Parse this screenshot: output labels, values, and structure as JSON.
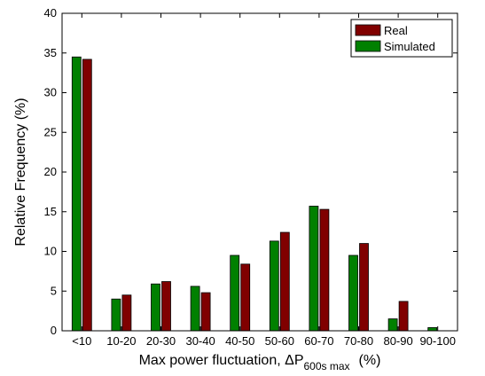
{
  "chart_data": {
    "type": "bar",
    "categories": [
      "<10",
      "10-20",
      "20-30",
      "30-40",
      "40-50",
      "50-60",
      "60-70",
      "70-80",
      "80-90",
      "90-100"
    ],
    "series": [
      {
        "name": "Simulated",
        "values": [
          34.5,
          4.0,
          5.9,
          5.6,
          9.5,
          11.3,
          15.7,
          9.5,
          1.5,
          0.4
        ],
        "color": "#008000"
      },
      {
        "name": "Real",
        "values": [
          34.2,
          4.5,
          6.2,
          4.8,
          8.4,
          12.4,
          15.3,
          11.0,
          3.7,
          0.0
        ],
        "color": "#800000"
      }
    ],
    "xlabel": {
      "prefix": "Max power fluctuation, ",
      "symbol": "ΔP",
      "subscript": "600s max",
      "suffix": "(%)"
    },
    "ylabel": "Relative Frequency (%)",
    "ylim": [
      0,
      40
    ],
    "yticks": [
      0,
      5,
      10,
      15,
      20,
      25,
      30,
      35,
      40
    ],
    "grid": false,
    "legend": {
      "position": "top-right",
      "entries": [
        "Real",
        "Simulated"
      ]
    }
  }
}
